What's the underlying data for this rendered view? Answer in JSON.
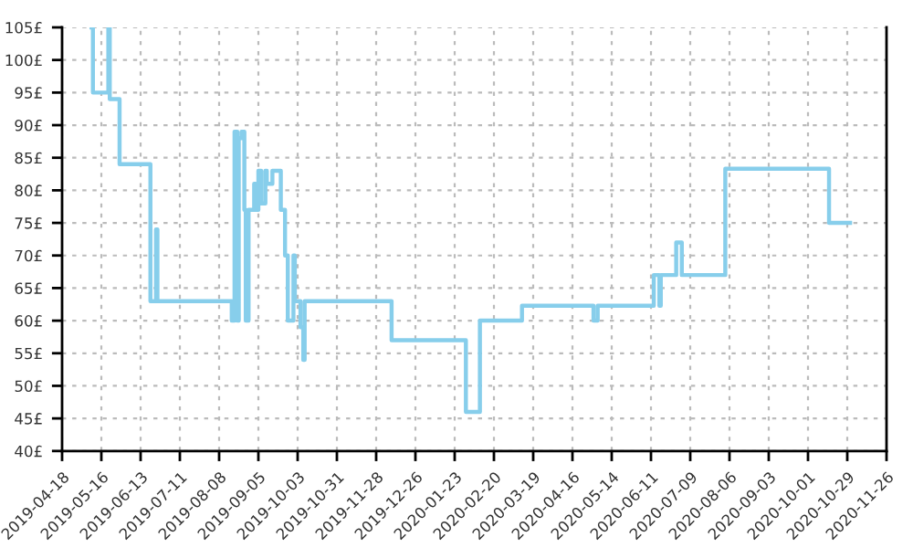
{
  "chart_data": {
    "type": "step",
    "x": [
      "2019-05-09",
      "2019-05-10",
      "2019-05-21",
      "2019-05-22",
      "2019-05-29",
      "2019-06-20",
      "2019-06-24",
      "2019-06-25",
      "2019-08-17",
      "2019-08-19",
      "2019-08-21",
      "2019-08-22",
      "2019-08-24",
      "2019-08-26",
      "2019-08-27",
      "2019-08-29",
      "2019-09-02",
      "2019-09-03",
      "2019-09-05",
      "2019-09-07",
      "2019-09-10",
      "2019-09-11",
      "2019-09-15",
      "2019-09-21",
      "2019-09-24",
      "2019-09-26",
      "2019-09-30",
      "2019-10-01",
      "2019-10-05",
      "2019-10-07",
      "2019-10-08",
      "2019-12-09",
      "2020-01-31",
      "2020-02-10",
      "2020-03-11",
      "2020-05-01",
      "2020-05-04",
      "2020-06-13",
      "2020-06-17",
      "2020-06-18",
      "2020-06-29",
      "2020-07-03",
      "2020-08-03",
      "2020-10-16",
      "2020-10-31"
    ],
    "series": [
      {
        "color": "#87ceeb",
        "values": [
          105,
          95,
          105,
          94,
          84,
          63,
          74,
          63,
          60,
          89,
          60,
          88,
          89,
          77,
          60,
          77,
          81,
          77,
          83,
          78,
          83,
          81,
          83,
          77,
          70,
          60,
          70,
          63,
          59,
          54,
          63,
          57,
          46,
          60,
          62.3,
          60,
          62.3,
          67,
          62.3,
          67,
          72,
          67,
          83.3,
          75,
          75
        ]
      }
    ],
    "xlim": [
      "2019-04-18",
      "2020-11-26"
    ],
    "xticks": [
      "2019-04-18",
      "2019-05-16",
      "2019-06-13",
      "2019-07-11",
      "2019-08-08",
      "2019-09-05",
      "2019-10-03",
      "2019-10-31",
      "2019-11-28",
      "2019-12-26",
      "2020-01-23",
      "2020-02-20",
      "2020-03-19",
      "2020-04-16",
      "2020-05-14",
      "2020-06-11",
      "2020-07-09",
      "2020-08-06",
      "2020-09-03",
      "2020-10-01",
      "2020-10-29",
      "2020-11-26"
    ],
    "ylim": [
      40,
      105
    ],
    "yticks": [
      {
        "value": 40,
        "label": "40£"
      },
      {
        "value": 45,
        "label": "45£"
      },
      {
        "value": 50,
        "label": "50£"
      },
      {
        "value": 55,
        "label": "55£"
      },
      {
        "value": 60,
        "label": "60£"
      },
      {
        "value": 65,
        "label": "65£"
      },
      {
        "value": 70,
        "label": "70£"
      },
      {
        "value": 75,
        "label": "75£"
      },
      {
        "value": 80,
        "label": "80£"
      },
      {
        "value": 85,
        "label": "85£"
      },
      {
        "value": 90,
        "label": "90£"
      },
      {
        "value": 95,
        "label": "95£"
      },
      {
        "value": 100,
        "label": "100£"
      },
      {
        "value": 105,
        "label": "105£"
      }
    ],
    "grid": true,
    "line_style": "solid",
    "marker": "none"
  }
}
